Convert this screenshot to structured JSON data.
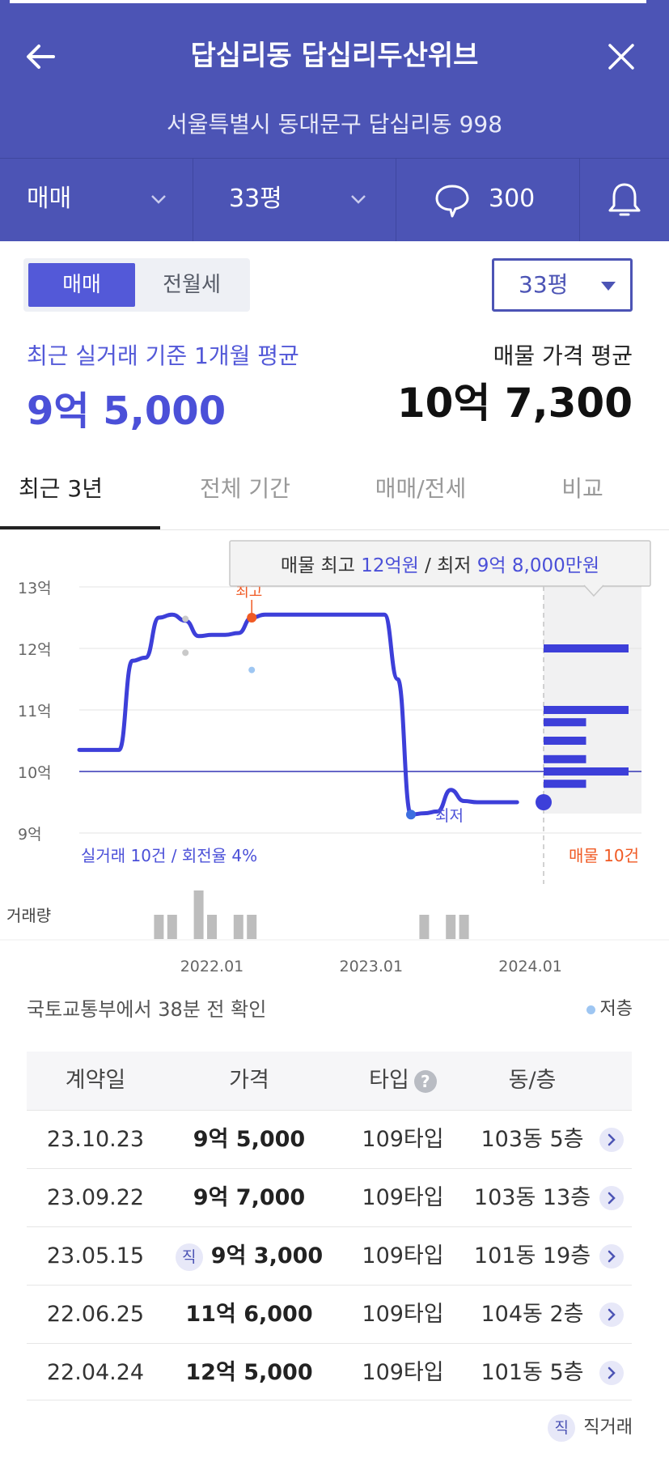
{
  "header": {
    "title": "답십리동 답십리두산위브",
    "address": "서울특별시 동대문구 답십리동 998",
    "filter_trade": "매매",
    "filter_size": "33평",
    "comment_count": "300"
  },
  "toggle": {
    "active": "매매",
    "inactive": "전월세"
  },
  "size_select": "33평",
  "summary": {
    "left_label": "최근 실거래 기준 1개월 평균",
    "left_value": "9억 5,000",
    "right_label": "매물 가격 평균",
    "right_value": "10억 7,300"
  },
  "tabs": [
    "최근 3년",
    "전체 기간",
    "매매/전세",
    "비교"
  ],
  "chart_tooltip": {
    "prefix": "매물 최고 ",
    "high": "12억원",
    "mid": " / 최저 ",
    "low": "9억 8,000만원"
  },
  "chart_data": {
    "type": "line",
    "y_ticks": [
      "13억",
      "12억",
      "11억",
      "10억",
      "9억"
    ],
    "ylim": [
      9,
      13
    ],
    "x_ticks": [
      "2022.01",
      "2023.01",
      "2024.01"
    ],
    "series": [
      {
        "x": [
          "2021-03",
          "2021-06",
          "2021-07",
          "2021-08",
          "2021-09",
          "2021-10",
          "2021-11",
          "2021-12",
          "2022-01",
          "2022-02",
          "2022-03",
          "2022-04",
          "2022-05",
          "2022-06",
          "2022-09",
          "2022-12",
          "2023-02",
          "2023-03",
          "2023-04",
          "2023-05",
          "2023-06",
          "2023-07",
          "2023-08",
          "2023-09",
          "2023-10",
          "2023-12"
        ],
        "values": [
          10.35,
          10.35,
          11.8,
          11.85,
          12.5,
          12.55,
          12.45,
          12.2,
          12.22,
          12.22,
          12.25,
          12.5,
          12.55,
          12.55,
          12.55,
          12.55,
          12.55,
          11.5,
          9.3,
          9.32,
          9.35,
          9.7,
          9.52,
          9.5,
          9.5,
          9.5
        ]
      }
    ],
    "high_marker_label": "최고",
    "low_marker_label": "최저",
    "high_point": {
      "x": "2022-04",
      "y": 12.5
    },
    "low_point": {
      "x": "2023-04",
      "y": 9.3
    },
    "low_floor_points": [
      {
        "x": "2022-04",
        "y": 11.65
      }
    ],
    "other_points": [
      {
        "x": "2021-11",
        "y": 12.48
      },
      {
        "x": "2021-11",
        "y": 11.93
      }
    ],
    "mean_line": 10.0,
    "listings_bars": [
      {
        "y": 12.0,
        "len": 1.0
      },
      {
        "y": 11.0,
        "len": 1.0
      },
      {
        "y": 10.8,
        "len": 0.5
      },
      {
        "y": 10.5,
        "len": 0.5
      },
      {
        "y": 10.2,
        "len": 0.5
      },
      {
        "y": 10.0,
        "len": 1.0
      },
      {
        "y": 9.8,
        "len": 0.5
      }
    ],
    "volume_label": "거래량",
    "volume": [
      {
        "x": "2021-09",
        "v": 1
      },
      {
        "x": "2021-10",
        "v": 1
      },
      {
        "x": "2021-12",
        "v": 2
      },
      {
        "x": "2022-01",
        "v": 1
      },
      {
        "x": "2022-03",
        "v": 1
      },
      {
        "x": "2022-04",
        "v": 1
      },
      {
        "x": "2023-05",
        "v": 1
      },
      {
        "x": "2023-07",
        "v": 1
      },
      {
        "x": "2023-08",
        "v": 1
      }
    ],
    "footer_left": "실거래 10건 / 회전율 4%",
    "footer_right": "매물 10건"
  },
  "updated_text": "국토교통부에서 38분 전 확인",
  "legend_low": "저층",
  "table": {
    "headers": [
      "계약일",
      "가격",
      "타입",
      "동/층"
    ],
    "help_icon": "?",
    "direct_badge": "직",
    "rows": [
      {
        "date": "23.10.23",
        "price": "9억 5,000",
        "direct": false,
        "type": "109타입",
        "unit": "103동 5층"
      },
      {
        "date": "23.09.22",
        "price": "9억 7,000",
        "direct": false,
        "type": "109타입",
        "unit": "103동 13층"
      },
      {
        "date": "23.05.15",
        "price": "9억 3,000",
        "direct": true,
        "type": "109타입",
        "unit": "101동 19층"
      },
      {
        "date": "22.06.25",
        "price": "11억 6,000",
        "direct": false,
        "type": "109타입",
        "unit": "104동 2층"
      },
      {
        "date": "22.04.24",
        "price": "12억 5,000",
        "direct": false,
        "type": "109타입",
        "unit": "101동 5층"
      }
    ]
  },
  "footnote": {
    "badge": "직",
    "label": "직거래"
  },
  "colors": {
    "brand": "#4c54b5",
    "line": "#3d3fd9",
    "high": "#f05a24",
    "listing": "#3d3fd9"
  }
}
